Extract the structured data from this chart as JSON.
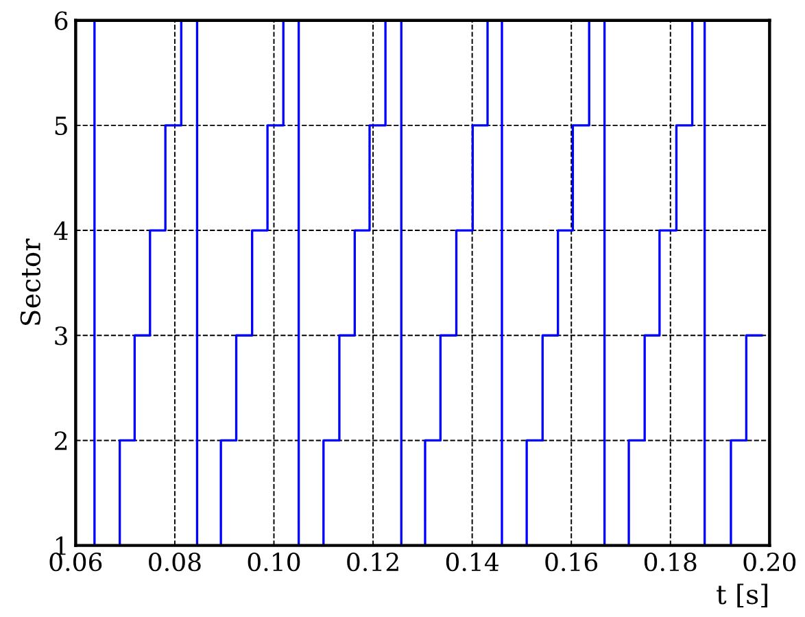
{
  "chart_data": {
    "type": "step",
    "ylabel": "Sector",
    "xlabel": "t [s]",
    "x": [
      0.0638,
      0.0638,
      0.0689,
      0.0719,
      0.075,
      0.0781,
      0.0813,
      0.0845,
      0.0893,
      0.0924,
      0.0956,
      0.0987,
      0.1019,
      0.105,
      0.11,
      0.1132,
      0.1163,
      0.1193,
      0.1225,
      0.1257,
      0.1305,
      0.1336,
      0.1368,
      0.1401,
      0.1431,
      0.146,
      0.151,
      0.1542,
      0.1573,
      0.1603,
      0.1636,
      0.1667,
      0.1716,
      0.1748,
      0.1778,
      0.1812,
      0.1844,
      0.1869,
      0.1922,
      0.1953,
      0.1984
    ],
    "series": [
      {
        "color": "#0000ff",
        "values": [
          6,
          1,
          2,
          3,
          4,
          5,
          6,
          1,
          2,
          3,
          4,
          5,
          6,
          1,
          2,
          3,
          4,
          5,
          6,
          1,
          2,
          3,
          4,
          5,
          6,
          1,
          2,
          3,
          4,
          5,
          6,
          1,
          2,
          3,
          4,
          5,
          6,
          1,
          2,
          3,
          3
        ]
      }
    ],
    "xlim": [
      0.06,
      0.2
    ],
    "xticks": [
      {
        "value": 0.06,
        "label": "0.06"
      },
      {
        "value": 0.08,
        "label": "0.08"
      },
      {
        "value": 0.1,
        "label": "0.10"
      },
      {
        "value": 0.12,
        "label": "0.12"
      },
      {
        "value": 0.14,
        "label": "0.14"
      },
      {
        "value": 0.16,
        "label": "0.16"
      },
      {
        "value": 0.18,
        "label": "0.18"
      },
      {
        "value": 0.2,
        "label": "0.20"
      }
    ],
    "ylim": [
      1,
      6
    ],
    "yticks": [
      1,
      2,
      3,
      4,
      5,
      6
    ],
    "grid": true,
    "line_style": "solid",
    "marker": "none",
    "legend": false
  }
}
